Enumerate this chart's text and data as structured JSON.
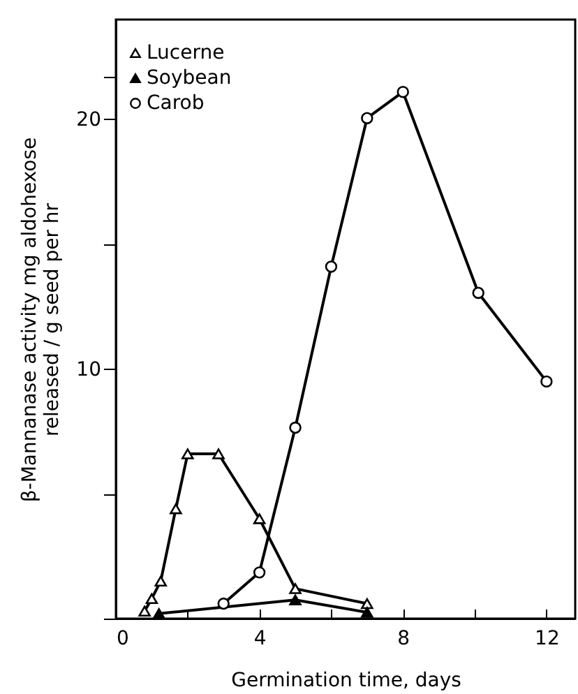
{
  "chart_data": {
    "type": "line",
    "xlabel": "Germination time,   days",
    "ylabel": "β-Mannanase activity mg aldohexose\nreleased / g seed per hr",
    "xlim": [
      0,
      12.8
    ],
    "ylim": [
      0,
      24
    ],
    "xticks": [
      0,
      {
        "value": 2,
        "label": null
      },
      4,
      {
        "value": 6,
        "label": null
      },
      8,
      {
        "value": 10,
        "label": null
      },
      12
    ],
    "yticks": [
      {
        "value": 0,
        "label": null
      },
      {
        "value": 5,
        "label": null
      },
      10,
      {
        "value": 15,
        "label": null
      },
      20,
      {
        "value": 21.7,
        "label": null
      }
    ],
    "legend": "top left",
    "grid": false,
    "line_style": "solid",
    "series": [
      {
        "name": "Lucerne",
        "color": "#000000",
        "marker": "triangle",
        "x": [
          0.8,
          1.0,
          1.25,
          1.67,
          2.0,
          2.86,
          4.0,
          5.0,
          7.0
        ],
        "values": [
          0.3,
          0.8,
          1.5,
          4.4,
          6.6,
          6.6,
          4.0,
          1.2,
          0.6
        ]
      },
      {
        "name": "Soybean",
        "color": "#000000",
        "marker": "triangle",
        "x": [
          1.2,
          5.0,
          7.0
        ],
        "values": [
          0.2,
          0.75,
          0.25
        ]
      },
      {
        "name": "Carob",
        "color": "#000000",
        "marker": "circle",
        "x": [
          3.0,
          4.0,
          5.0,
          6.0,
          7.0,
          8.0,
          10.1,
          12.0
        ],
        "values": [
          0.6,
          1.85,
          7.65,
          14.1,
          20.05,
          21.1,
          13.05,
          9.5
        ]
      }
    ]
  }
}
